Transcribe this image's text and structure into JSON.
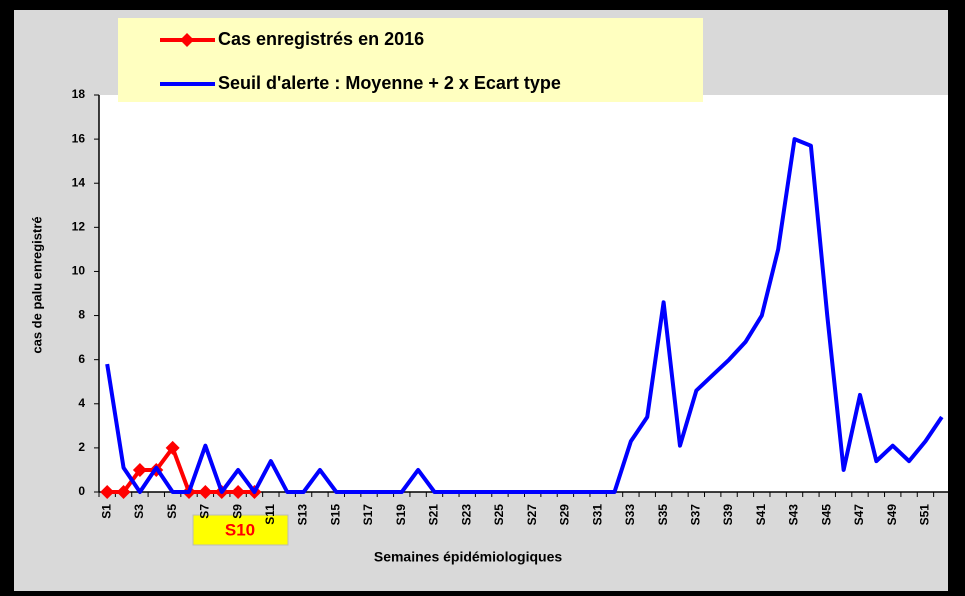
{
  "chart_data": {
    "type": "line",
    "categories": [
      "S1",
      null,
      "S3",
      null,
      "S5",
      null,
      "S7",
      null,
      "S9",
      null,
      "S11",
      null,
      "S13",
      null,
      "S15",
      null,
      "S17",
      null,
      "S19",
      null,
      "S21",
      null,
      "S23",
      null,
      "S25",
      null,
      "S27",
      null,
      "S29",
      null,
      "S31",
      null,
      "S33",
      null,
      "S35",
      null,
      "S37",
      null,
      "S39",
      null,
      "S41",
      null,
      "S43",
      null,
      "S45",
      null,
      "S47",
      null,
      "S49",
      null,
      "S51",
      null
    ],
    "series": [
      {
        "name": "Cas enregistrés en 2016",
        "color": "#ff0000",
        "marker": "diamond",
        "values": [
          0,
          0,
          1,
          1,
          2,
          0,
          0,
          0,
          0,
          0,
          null,
          null,
          null,
          null,
          null,
          null,
          null,
          null,
          null,
          null,
          null,
          null,
          null,
          null,
          null,
          null,
          null,
          null,
          null,
          null,
          null,
          null,
          null,
          null,
          null,
          null,
          null,
          null,
          null,
          null,
          null,
          null,
          null,
          null,
          null,
          null,
          null,
          null,
          null,
          null,
          null,
          null
        ]
      },
      {
        "name": "Seuil d'alerte : Moyenne + 2 x Ecart type",
        "color": "#0000ff",
        "values": [
          5.8,
          1.1,
          0,
          1.1,
          0,
          0,
          2.1,
          0,
          1.0,
          0,
          1.4,
          0,
          0,
          1.0,
          0,
          0,
          0,
          0,
          0,
          1.0,
          0,
          0,
          0,
          0,
          0,
          0,
          0,
          0,
          0,
          0,
          0,
          0,
          2.3,
          3.4,
          8.6,
          2.1,
          4.6,
          5.3,
          6.0,
          6.8,
          8.0,
          11.0,
          16.0,
          15.7,
          8.0,
          1.0,
          4.4,
          1.4,
          2.1,
          1.4,
          2.3,
          3.4
        ]
      }
    ],
    "ylim": [
      0,
      18
    ],
    "yticks": [
      0,
      2,
      4,
      6,
      8,
      10,
      12,
      14,
      16,
      18
    ],
    "grid": false,
    "y_label": "cas de palu enregistré",
    "x_label": "Semaines épidémiologiques",
    "annotation": "S10",
    "legend": "top"
  }
}
